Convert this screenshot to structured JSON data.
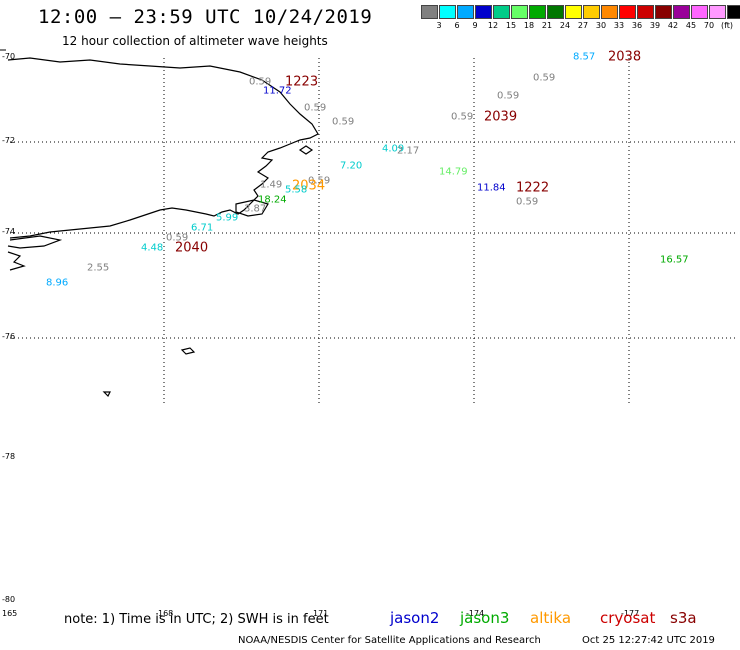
{
  "header": {
    "title": "12:00 – 23:59 UTC 10/24/2019",
    "subtitle": "12 hour collection of altimeter wave heights"
  },
  "legend_scale": {
    "swatches": [
      "#808080",
      "#00ffff",
      "#00aaff",
      "#0000cc",
      "#00cc88",
      "#66ff66",
      "#00aa00",
      "#007700",
      "#ffff00",
      "#ffcc00",
      "#ff8800",
      "#ff0000",
      "#cc0000",
      "#880000",
      "#990099",
      "#ff66ff",
      "#ff99ff",
      "#000000"
    ],
    "ticks": [
      "3",
      "6",
      "9",
      "12",
      "15",
      "18",
      "21",
      "24",
      "27",
      "30",
      "33",
      "36",
      "39",
      "42",
      "45",
      "70",
      "(ft)"
    ]
  },
  "axes": {
    "lat_labels": [
      "-70",
      "-72",
      "-74",
      "-76",
      "-78",
      "-80"
    ],
    "lon_labels": [
      "165",
      "168",
      "171",
      "-174",
      "-177"
    ]
  },
  "observations": [
    {
      "text": "0.59",
      "color": "#808080"
    },
    {
      "text": "1223",
      "color": "#880000"
    },
    {
      "text": "11.72",
      "color": "#0000cc"
    },
    {
      "text": "0.59",
      "color": "#808080"
    },
    {
      "text": "0.59",
      "color": "#808080"
    },
    {
      "text": "8.57",
      "color": "#00aaff"
    },
    {
      "text": "2038",
      "color": "#880000"
    },
    {
      "text": "0.59",
      "color": "#808080"
    },
    {
      "text": "0.59",
      "color": "#808080"
    },
    {
      "text": "0.59",
      "color": "#808080"
    },
    {
      "text": "2039",
      "color": "#880000"
    },
    {
      "text": "4.09",
      "color": "#00cccc"
    },
    {
      "text": "2.17",
      "color": "#808080"
    },
    {
      "text": "7.20",
      "color": "#00cccc"
    },
    {
      "text": "14.79",
      "color": "#66ee66"
    },
    {
      "text": "0.59",
      "color": "#808080"
    },
    {
      "text": "2034",
      "color": "#ff9900"
    },
    {
      "text": "1.49",
      "color": "#808080"
    },
    {
      "text": "5.58",
      "color": "#00cccc"
    },
    {
      "text": "18.24",
      "color": "#00aa00"
    },
    {
      "text": "11.84",
      "color": "#0000cc"
    },
    {
      "text": "1222",
      "color": "#880000"
    },
    {
      "text": "0.59",
      "color": "#808080"
    },
    {
      "text": "3.87",
      "color": "#808080"
    },
    {
      "text": "5.99",
      "color": "#00cccc"
    },
    {
      "text": "6.71",
      "color": "#00cccc"
    },
    {
      "text": "0.59",
      "color": "#808080"
    },
    {
      "text": "4.48",
      "color": "#00cccc"
    },
    {
      "text": "2040",
      "color": "#880000"
    },
    {
      "text": "2.55",
      "color": "#808080"
    },
    {
      "text": "8.96",
      "color": "#00aaff"
    },
    {
      "text": "16.57",
      "color": "#00aa00"
    }
  ],
  "footer": {
    "note": "note: 1) Time is in UTC; 2) SWH is in feet",
    "missions": [
      {
        "name": "jason2",
        "color": "#0000cc"
      },
      {
        "name": "jason3",
        "color": "#00aa00"
      },
      {
        "name": "altika",
        "color": "#ff9900"
      },
      {
        "name": "cryosat",
        "color": "#cc0000"
      },
      {
        "name": "s3a",
        "color": "#880000"
      }
    ],
    "credit": "NOAA/NESDIS Center for Satellite Applications and Research",
    "timestamp": "Oct 25 12:27:42 UTC 2019"
  }
}
